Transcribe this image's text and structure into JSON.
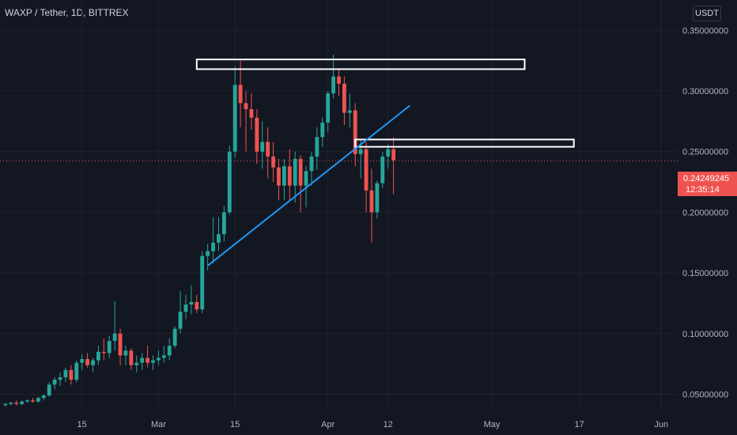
{
  "header": {
    "title": "WAXP / Tether, 1D, BITTREX",
    "currency_button": "USDT"
  },
  "price_label": {
    "price": "0.24249245",
    "countdown": "12:35:14"
  },
  "colors": {
    "background": "#131722",
    "grid": "#1e222d",
    "up": "#26a69a",
    "down": "#ef5350",
    "trendline": "#2196f3",
    "zone_border": "#ffffff",
    "text": "#b2b5be"
  },
  "chart_data": {
    "type": "candlestick",
    "title": "WAXP / Tether, 1D, BITTREX",
    "y_axis": {
      "ticks": [
        "0.05000000",
        "0.10000000",
        "0.15000000",
        "0.20000000",
        "0.25000000",
        "0.30000000",
        "0.35000000"
      ],
      "tick_values": [
        0.05,
        0.1,
        0.15,
        0.2,
        0.25,
        0.3,
        0.35
      ],
      "range": [
        0.036,
        0.375
      ]
    },
    "x_axis": {
      "ticks": [
        "15",
        "Mar",
        "15",
        "Apr",
        "12",
        "May",
        "17",
        "Jun"
      ],
      "tick_dates": [
        "2021-02-15",
        "2021-03-01",
        "2021-03-15",
        "2021-04-01",
        "2021-04-12",
        "2021-05-01",
        "2021-05-17",
        "2021-06-01"
      ],
      "range": [
        "2021-01-31",
        "2021-06-04"
      ]
    },
    "last_price": 0.24249245,
    "grid": true,
    "series": [
      {
        "type": "ohlc",
        "first_date": "2021-02-01",
        "interval": "1D",
        "ohlc": [
          [
            0.041,
            0.043,
            0.04,
            0.042
          ],
          [
            0.042,
            0.044,
            0.041,
            0.043
          ],
          [
            0.043,
            0.045,
            0.041,
            0.042
          ],
          [
            0.042,
            0.045,
            0.041,
            0.044
          ],
          [
            0.044,
            0.046,
            0.043,
            0.045
          ],
          [
            0.045,
            0.047,
            0.043,
            0.044
          ],
          [
            0.044,
            0.048,
            0.043,
            0.047
          ],
          [
            0.047,
            0.05,
            0.045,
            0.049
          ],
          [
            0.049,
            0.06,
            0.048,
            0.058
          ],
          [
            0.058,
            0.064,
            0.054,
            0.062
          ],
          [
            0.062,
            0.068,
            0.057,
            0.064
          ],
          [
            0.064,
            0.072,
            0.06,
            0.07
          ],
          [
            0.07,
            0.074,
            0.058,
            0.062
          ],
          [
            0.062,
            0.078,
            0.06,
            0.076
          ],
          [
            0.076,
            0.083,
            0.07,
            0.079
          ],
          [
            0.079,
            0.084,
            0.072,
            0.074
          ],
          [
            0.074,
            0.08,
            0.068,
            0.078
          ],
          [
            0.078,
            0.09,
            0.074,
            0.085
          ],
          [
            0.085,
            0.096,
            0.078,
            0.084
          ],
          [
            0.084,
            0.098,
            0.08,
            0.094
          ],
          [
            0.094,
            0.127,
            0.086,
            0.1
          ],
          [
            0.1,
            0.104,
            0.074,
            0.082
          ],
          [
            0.082,
            0.09,
            0.074,
            0.086
          ],
          [
            0.086,
            0.088,
            0.07,
            0.074
          ],
          [
            0.074,
            0.082,
            0.068,
            0.076
          ],
          [
            0.076,
            0.084,
            0.07,
            0.08
          ],
          [
            0.08,
            0.09,
            0.072,
            0.076
          ],
          [
            0.076,
            0.082,
            0.07,
            0.078
          ],
          [
            0.078,
            0.086,
            0.074,
            0.08
          ],
          [
            0.08,
            0.09,
            0.076,
            0.082
          ],
          [
            0.082,
            0.096,
            0.078,
            0.09
          ],
          [
            0.09,
            0.106,
            0.088,
            0.104
          ],
          [
            0.104,
            0.135,
            0.1,
            0.118
          ],
          [
            0.118,
            0.132,
            0.112,
            0.124
          ],
          [
            0.124,
            0.14,
            0.116,
            0.126
          ],
          [
            0.126,
            0.132,
            0.117,
            0.12
          ],
          [
            0.12,
            0.168,
            0.117,
            0.164
          ],
          [
            0.164,
            0.174,
            0.152,
            0.168
          ],
          [
            0.168,
            0.196,
            0.158,
            0.175
          ],
          [
            0.175,
            0.196,
            0.168,
            0.182
          ],
          [
            0.182,
            0.205,
            0.176,
            0.2
          ],
          [
            0.2,
            0.255,
            0.198,
            0.25
          ],
          [
            0.25,
            0.32,
            0.245,
            0.305
          ],
          [
            0.305,
            0.325,
            0.27,
            0.29
          ],
          [
            0.29,
            0.3,
            0.25,
            0.285
          ],
          [
            0.285,
            0.298,
            0.268,
            0.278
          ],
          [
            0.278,
            0.285,
            0.24,
            0.25
          ],
          [
            0.25,
            0.275,
            0.236,
            0.258
          ],
          [
            0.258,
            0.27,
            0.228,
            0.246
          ],
          [
            0.246,
            0.258,
            0.225,
            0.237
          ],
          [
            0.237,
            0.244,
            0.21,
            0.222
          ],
          [
            0.222,
            0.244,
            0.21,
            0.238
          ],
          [
            0.238,
            0.252,
            0.21,
            0.222
          ],
          [
            0.222,
            0.25,
            0.208,
            0.244
          ],
          [
            0.244,
            0.247,
            0.2,
            0.222
          ],
          [
            0.222,
            0.238,
            0.204,
            0.234
          ],
          [
            0.234,
            0.25,
            0.222,
            0.246
          ],
          [
            0.246,
            0.27,
            0.235,
            0.262
          ],
          [
            0.262,
            0.278,
            0.254,
            0.274
          ],
          [
            0.274,
            0.3,
            0.266,
            0.298
          ],
          [
            0.298,
            0.33,
            0.294,
            0.312
          ],
          [
            0.312,
            0.318,
            0.296,
            0.306
          ],
          [
            0.306,
            0.312,
            0.272,
            0.282
          ],
          [
            0.282,
            0.298,
            0.27,
            0.284
          ],
          [
            0.284,
            0.29,
            0.238,
            0.248
          ],
          [
            0.248,
            0.26,
            0.228,
            0.252
          ],
          [
            0.252,
            0.258,
            0.2,
            0.218
          ],
          [
            0.218,
            0.236,
            0.175,
            0.2
          ],
          [
            0.2,
            0.226,
            0.195,
            0.224
          ],
          [
            0.224,
            0.25,
            0.22,
            0.246
          ],
          [
            0.246,
            0.256,
            0.236,
            0.252
          ],
          [
            0.252,
            0.262,
            0.215,
            0.243
          ]
        ]
      }
    ],
    "annotations": [
      {
        "type": "zone",
        "x": [
          "2021-03-08",
          "2021-05-07"
        ],
        "y": [
          0.318,
          0.326
        ]
      },
      {
        "type": "zone",
        "x": [
          "2021-04-06",
          "2021-05-16"
        ],
        "y": [
          0.254,
          0.26
        ]
      },
      {
        "type": "trendline",
        "x": [
          "2021-03-10",
          "2021-04-16"
        ],
        "y": [
          0.156,
          0.288
        ]
      }
    ]
  }
}
